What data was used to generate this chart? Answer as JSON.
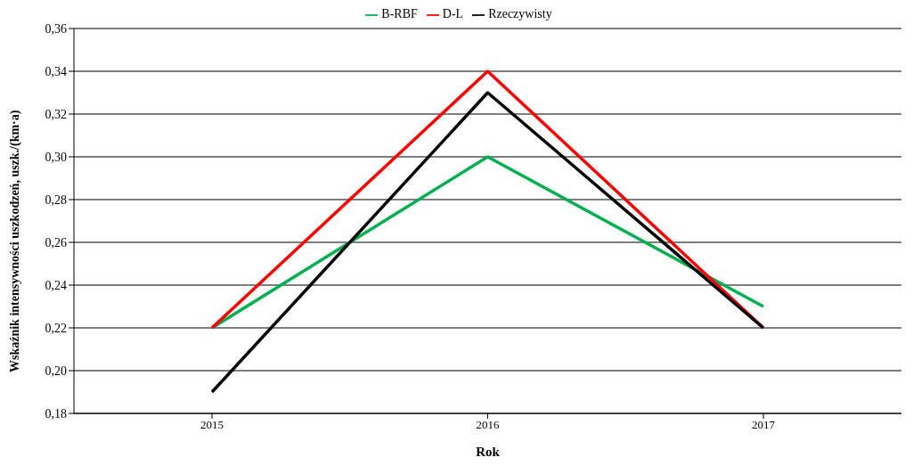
{
  "chart_data": {
    "type": "line",
    "xlabel": "Rok",
    "ylabel": "Wskaźnik intensywności uszkodzeń, uszk./(km·a)",
    "categories": [
      "2015",
      "2016",
      "2017"
    ],
    "series": [
      {
        "name": "B-RBF",
        "color": "#00b050",
        "values": [
          0.22,
          0.3,
          0.23
        ]
      },
      {
        "name": "D-L",
        "color": "#ff0000",
        "values": [
          0.22,
          0.34,
          0.22
        ]
      },
      {
        "name": "Rzeczywisty",
        "color": "#000000",
        "values": [
          0.19,
          0.33,
          0.22
        ]
      }
    ],
    "ylim": [
      0.18,
      0.36
    ],
    "yticks": [
      {
        "value": 0.18,
        "label": "0,18"
      },
      {
        "value": 0.2,
        "label": "0,20"
      },
      {
        "value": 0.22,
        "label": "0,22"
      },
      {
        "value": 0.24,
        "label": "0,24"
      },
      {
        "value": 0.26,
        "label": "0,26"
      },
      {
        "value": 0.28,
        "label": "0,28"
      },
      {
        "value": 0.3,
        "label": "0,30"
      },
      {
        "value": 0.32,
        "label": "0,32"
      },
      {
        "value": 0.34,
        "label": "0,34"
      },
      {
        "value": 0.36,
        "label": "0,36"
      }
    ],
    "grid": "y",
    "legend": "top",
    "marker": "none",
    "line_style": "solid"
  }
}
